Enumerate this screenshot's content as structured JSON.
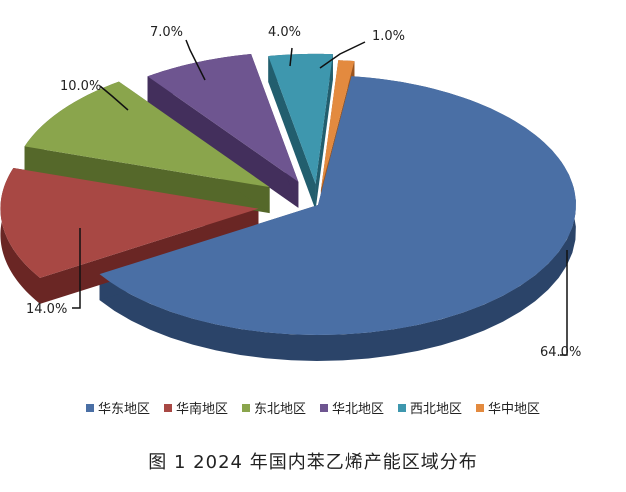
{
  "caption": "图 1  2024 年国内苯乙烯产能区域分布",
  "chart_data": {
    "type": "pie",
    "title": "",
    "legend_position": "bottom",
    "series": [
      {
        "name": "华东地区",
        "value": 64.0,
        "label": "64.0%",
        "color": "#4A6FA5",
        "side": "#2B4469"
      },
      {
        "name": "华南地区",
        "value": 14.0,
        "label": "14.0%",
        "color": "#A84844",
        "side": "#6A2624"
      },
      {
        "name": "东北地区",
        "value": 10.0,
        "label": "10.0%",
        "color": "#8AA54C",
        "side": "#55682A"
      },
      {
        "name": "华北地区",
        "value": 7.0,
        "label": "7.0%",
        "color": "#6E5590",
        "side": "#432F5C"
      },
      {
        "name": "西北地区",
        "value": 4.0,
        "label": "4.0%",
        "color": "#3E97AE",
        "side": "#225E6E"
      },
      {
        "name": "华中地区",
        "value": 1.0,
        "label": "1.0%",
        "color": "#E38A3F",
        "side": "#9A5520"
      }
    ]
  }
}
